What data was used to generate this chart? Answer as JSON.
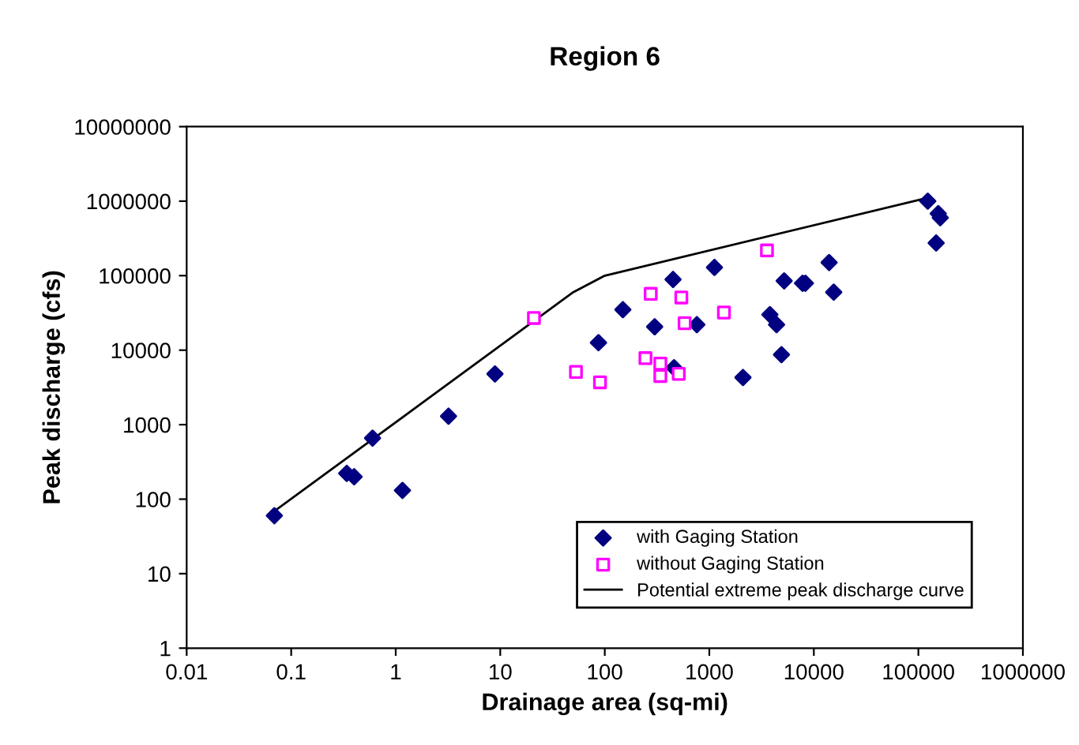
{
  "chart_data": {
    "type": "scatter",
    "title": "Region 6",
    "xlabel": "Drainage area (sq-mi)",
    "ylabel": "Peak discharge (cfs)",
    "log": "xy",
    "grid": false,
    "legend": "bottom right",
    "xlim": [
      0.01,
      1000000
    ],
    "xticks": [
      0.01,
      0.1,
      1,
      10,
      100,
      1000,
      10000,
      100000,
      1000000
    ],
    "ylim": [
      1,
      10000000
    ],
    "yticks": [
      1,
      10,
      100,
      1000,
      10000,
      100000,
      1000000,
      10000000
    ],
    "series": [
      {
        "name": "with Gaging Station",
        "marker": "diamond",
        "color": "#000080",
        "x": [
          0.069,
          0.34,
          0.4,
          0.6,
          1.16,
          3.2,
          8.9,
          87,
          149,
          450,
          300,
          460,
          760,
          1120,
          2100,
          3800,
          4400,
          5200,
          4900,
          7800,
          8300,
          14000,
          15500,
          123000,
          155000,
          162000,
          148000
        ],
        "values": [
          60,
          222,
          200,
          660,
          131,
          1300,
          4800,
          12600,
          35000,
          89000,
          20600,
          5800,
          22000,
          129000,
          4300,
          30000,
          22000,
          85000,
          8700,
          79000,
          79000,
          150000,
          60000,
          1000000,
          680000,
          600000,
          275000
        ]
      },
      {
        "name": "without Gaging Station",
        "marker": "square",
        "color": "#ff00ff",
        "x": [
          21,
          53,
          90,
          275,
          540,
          580,
          1380,
          3560,
          245,
          340,
          340,
          510
        ],
        "values": [
          27000,
          5100,
          3700,
          57000,
          51000,
          23000,
          32000,
          218000,
          7800,
          6600,
          4500,
          4800
        ]
      },
      {
        "name": "Potential extreme peak discharge curve",
        "type": "line",
        "marker": "none",
        "line_style": "solid",
        "color": "#000000",
        "x": [
          0.07,
          50,
          100,
          120000
        ],
        "values": [
          70,
          60000,
          100000,
          1100000
        ]
      }
    ]
  }
}
